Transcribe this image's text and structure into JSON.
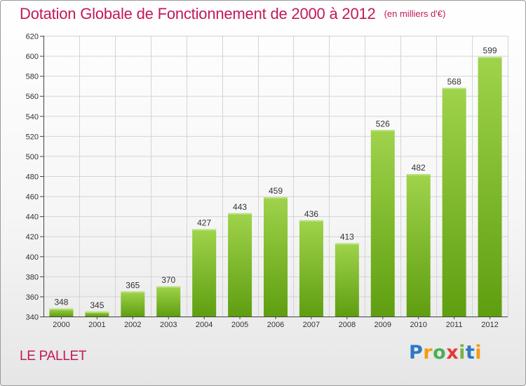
{
  "title": "Dotation Globale de Fonctionnement de 2000 à 2012",
  "subtitle": "(en milliers d'€)",
  "commune": "LE PALLET",
  "logo": {
    "letters": [
      "P",
      "r",
      "o",
      "x",
      "i",
      "t",
      "i"
    ],
    "colors": [
      "#2b78c7",
      "#f39c12",
      "#4caf50",
      "#e53935",
      "#7cb342",
      "#2b78c7",
      "#f39c12"
    ]
  },
  "colors": {
    "bar_light": "#9fd34b",
    "bar_dark": "#5f9e10",
    "title": "#c2185b",
    "grid": "#d4d4d4"
  },
  "chart_data": {
    "type": "bar",
    "categories": [
      "2000",
      "2001",
      "2002",
      "2003",
      "2004",
      "2005",
      "2006",
      "2007",
      "2008",
      "2009",
      "2010",
      "2011",
      "2012"
    ],
    "values": [
      348,
      345,
      365,
      370,
      427,
      443,
      459,
      436,
      413,
      526,
      482,
      568,
      599
    ],
    "ylim": [
      340,
      620
    ],
    "yticks": [
      340,
      360,
      380,
      400,
      420,
      440,
      460,
      480,
      500,
      520,
      540,
      560,
      580,
      600,
      620
    ],
    "grid": true,
    "data_labels": true
  }
}
